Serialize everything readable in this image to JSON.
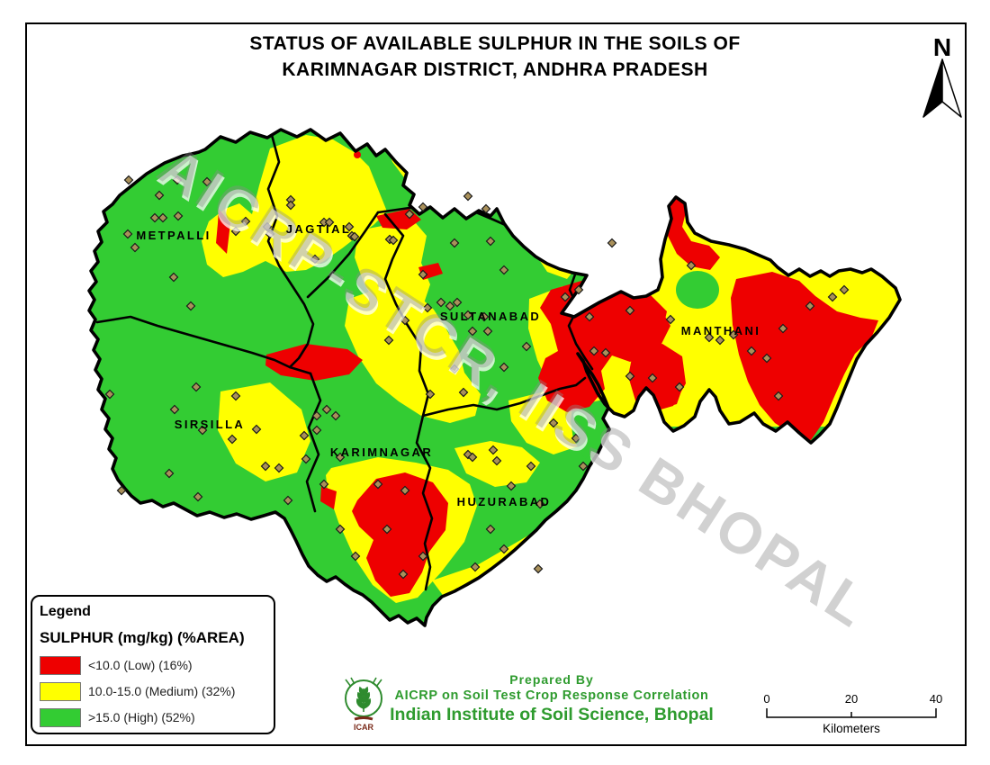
{
  "page": {
    "title_line1": "STATUS OF AVAILABLE SULPHUR IN THE SOILS OF",
    "title_line2": "KARIMNAGAR DISTRICT, ANDHRA PRADESH"
  },
  "north_arrow": {
    "label": "N"
  },
  "map": {
    "watermark": "AICRP-STCR, IISS BHOPAL",
    "regions": [
      "METPALLI",
      "JAGTIAL",
      "SULTANABAD",
      "MANTHANI",
      "SIRSILLA",
      "KARIMNAGAR",
      "HUZURABAD"
    ],
    "colors": {
      "low": "#ee0000",
      "medium": "#ffff00",
      "high": "#33cc33",
      "boundary": "#000000",
      "sample_point": "#a9905a"
    },
    "sample_points": [
      [
        143,
        200
      ],
      [
        177,
        217
      ],
      [
        172,
        242
      ],
      [
        181,
        242
      ],
      [
        197,
        200
      ],
      [
        198,
        240
      ],
      [
        142,
        260
      ],
      [
        150,
        275
      ],
      [
        193,
        308
      ],
      [
        212,
        340
      ],
      [
        230,
        202
      ],
      [
        262,
        257
      ],
      [
        273,
        246
      ],
      [
        297,
        252
      ],
      [
        300,
        260
      ],
      [
        323,
        222
      ],
      [
        323,
        228
      ],
      [
        360,
        247
      ],
      [
        366,
        247
      ],
      [
        388,
        252
      ],
      [
        391,
        262
      ],
      [
        394,
        263
      ],
      [
        433,
        266
      ],
      [
        437,
        267
      ],
      [
        350,
        288
      ],
      [
        455,
        238
      ],
      [
        470,
        230
      ],
      [
        520,
        218
      ],
      [
        540,
        232
      ],
      [
        505,
        270
      ],
      [
        545,
        268
      ],
      [
        560,
        300
      ],
      [
        470,
        305
      ],
      [
        475,
        342
      ],
      [
        490,
        336
      ],
      [
        500,
        340
      ],
      [
        508,
        336
      ],
      [
        520,
        350
      ],
      [
        525,
        368
      ],
      [
        538,
        352
      ],
      [
        542,
        368
      ],
      [
        585,
        385
      ],
      [
        560,
        408
      ],
      [
        505,
        410
      ],
      [
        450,
        356
      ],
      [
        432,
        378
      ],
      [
        478,
        438
      ],
      [
        515,
        436
      ],
      [
        122,
        438
      ],
      [
        194,
        455
      ],
      [
        225,
        478
      ],
      [
        188,
        526
      ],
      [
        295,
        518
      ],
      [
        310,
        520
      ],
      [
        340,
        510
      ],
      [
        258,
        488
      ],
      [
        285,
        477
      ],
      [
        218,
        430
      ],
      [
        262,
        440
      ],
      [
        135,
        545
      ],
      [
        220,
        552
      ],
      [
        320,
        556
      ],
      [
        352,
        462
      ],
      [
        338,
        484
      ],
      [
        363,
        455
      ],
      [
        373,
        462
      ],
      [
        352,
        478
      ],
      [
        378,
        508
      ],
      [
        420,
        538
      ],
      [
        450,
        545
      ],
      [
        378,
        588
      ],
      [
        395,
        618
      ],
      [
        448,
        638
      ],
      [
        470,
        618
      ],
      [
        430,
        588
      ],
      [
        360,
        538
      ],
      [
        520,
        505
      ],
      [
        525,
        508
      ],
      [
        548,
        500
      ],
      [
        552,
        512
      ],
      [
        568,
        540
      ],
      [
        545,
        588
      ],
      [
        598,
        632
      ],
      [
        560,
        610
      ],
      [
        528,
        630
      ],
      [
        590,
        518
      ],
      [
        615,
        470
      ],
      [
        640,
        487
      ],
      [
        648,
        518
      ],
      [
        600,
        560
      ],
      [
        700,
        345
      ],
      [
        745,
        355
      ],
      [
        788,
        375
      ],
      [
        800,
        378
      ],
      [
        815,
        372
      ],
      [
        835,
        390
      ],
      [
        852,
        398
      ],
      [
        870,
        365
      ],
      [
        900,
        340
      ],
      [
        925,
        330
      ],
      [
        938,
        322
      ],
      [
        865,
        440
      ],
      [
        755,
        430
      ],
      [
        725,
        420
      ],
      [
        700,
        418
      ],
      [
        660,
        390
      ],
      [
        673,
        392
      ],
      [
        643,
        322
      ],
      [
        680,
        270
      ],
      [
        768,
        295
      ],
      [
        628,
        330
      ],
      [
        655,
        352
      ]
    ]
  },
  "legend": {
    "title": "Legend",
    "subtitle": "SULPHUR (mg/kg) (%AREA)",
    "items": [
      {
        "label": "<10.0 (Low) (16%)",
        "color": "#ee0000"
      },
      {
        "label": "10.0-15.0 (Medium) (32%)",
        "color": "#ffff00"
      },
      {
        "label": ">15.0 (High) (52%)",
        "color": "#33cc33"
      }
    ]
  },
  "credits": {
    "prepared_by": "Prepared By",
    "org_line1": "AICRP on Soil Test Crop Response Correlation",
    "org_line2": "Indian Institute of Soil Science, Bhopal",
    "logo_label": "ICAR"
  },
  "scale_bar": {
    "tick_labels": [
      "0",
      "20",
      "40"
    ],
    "unit": "Kilometers"
  }
}
